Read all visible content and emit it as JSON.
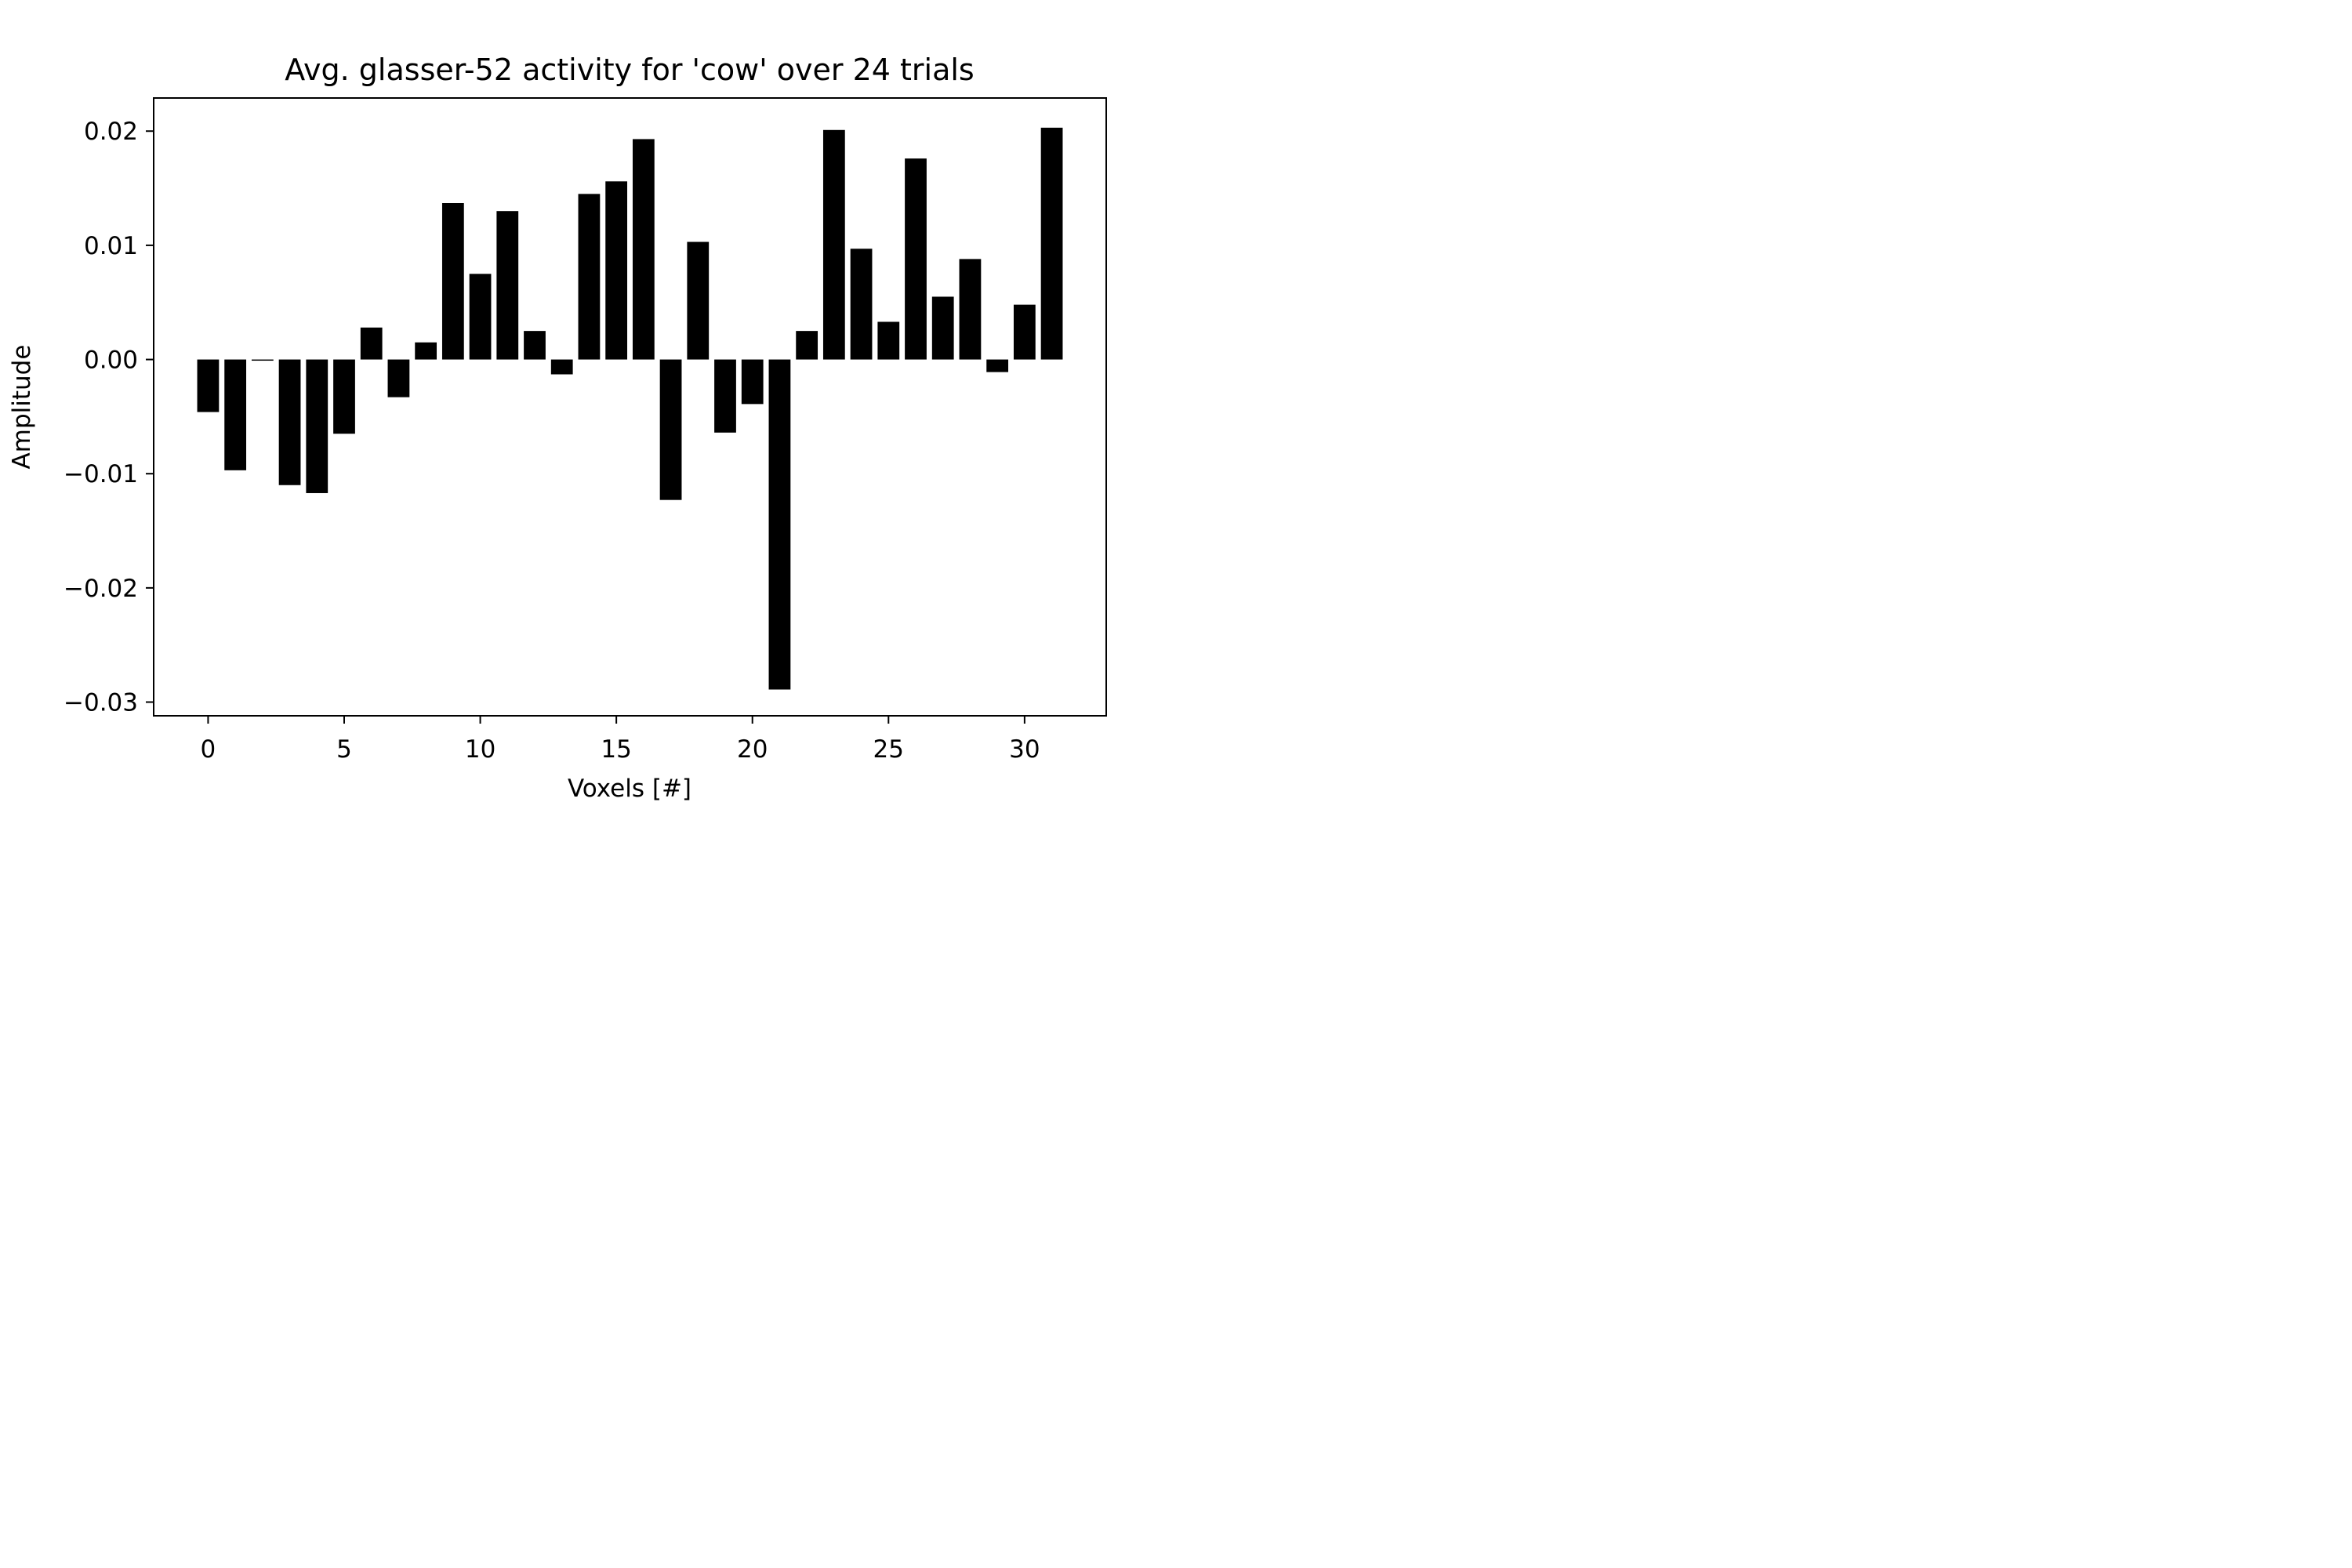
{
  "chart_data": {
    "type": "bar",
    "title": "Avg. glasser-52 activity for 'cow' over 24 trials",
    "xlabel": "Voxels [#]",
    "ylabel": "Amplitude",
    "x": [
      0,
      1,
      2,
      3,
      4,
      5,
      6,
      7,
      8,
      9,
      10,
      11,
      12,
      13,
      14,
      15,
      16,
      17,
      18,
      19,
      20,
      21,
      22,
      23,
      24,
      25,
      26,
      27,
      28,
      29,
      30,
      31
    ],
    "values": [
      -0.0046,
      -0.0097,
      -0.0001,
      -0.011,
      -0.0117,
      -0.0065,
      0.0028,
      -0.0033,
      0.0015,
      0.0137,
      0.0075,
      0.013,
      0.0025,
      -0.0013,
      0.0145,
      0.0156,
      0.0193,
      -0.0123,
      0.0103,
      -0.0064,
      -0.0039,
      -0.0289,
      0.0025,
      0.0201,
      0.0097,
      0.0033,
      0.0176,
      0.0055,
      0.0088,
      -0.0011,
      0.0048,
      0.0203
    ],
    "xlim": [
      -2.0,
      33.0
    ],
    "ylim": [
      -0.0312,
      0.0229
    ],
    "xticks": [
      0,
      5,
      10,
      15,
      20,
      25,
      30
    ],
    "xtick_labels": [
      "0",
      "5",
      "10",
      "15",
      "20",
      "25",
      "30"
    ],
    "yticks": [
      -0.03,
      -0.02,
      -0.01,
      0.0,
      0.01,
      0.02
    ],
    "ytick_labels": [
      "−0.03",
      "−0.02",
      "−0.01",
      "0.00",
      "0.01",
      "0.02"
    ],
    "bar_color": "#000000",
    "grid": false,
    "legend": "none"
  }
}
